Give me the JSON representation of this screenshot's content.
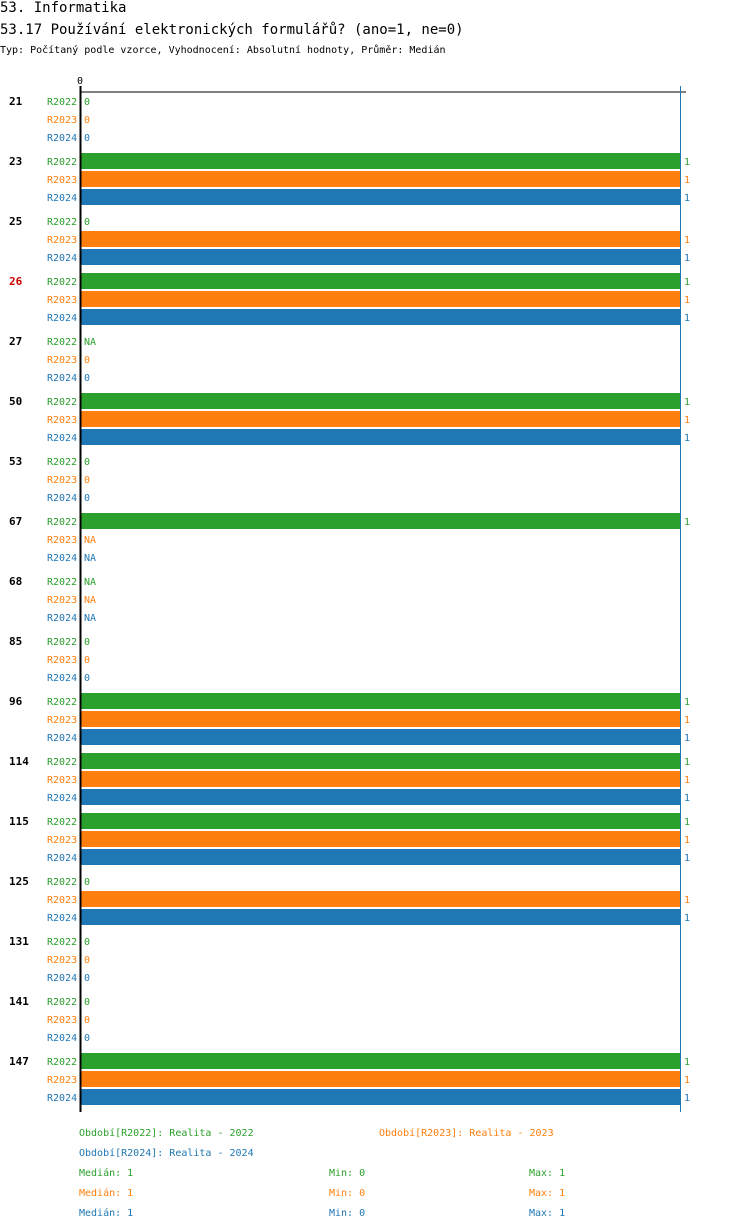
{
  "header": {
    "section": "53. Informatika",
    "question": "53.17 Používání elektronických formulářů? (ano=1, ne=0)",
    "meta": "Typ: Počítaný podle vzorce, Vyhodnocení: Absolutní hodnoty, Průměr: Medián"
  },
  "colors": {
    "R2022": "#2ca02c",
    "R2023": "#ff7f0e",
    "R2024": "#1f77b4",
    "highlight": "#cc0000"
  },
  "chart_data": {
    "type": "bar",
    "orientation": "horizontal",
    "title": "53.17 Používání elektronických formulářů? (ano=1, ne=0)",
    "xlim": [
      0,
      1
    ],
    "x_tick_labels": [
      "0"
    ],
    "series": [
      {
        "name": "R2022",
        "color": "#2ca02c"
      },
      {
        "name": "R2023",
        "color": "#ff7f0e"
      },
      {
        "name": "R2024",
        "color": "#1f77b4"
      }
    ],
    "groups": [
      {
        "id": "21",
        "highlight": false,
        "values": [
          {
            "series": "R2022",
            "value": 0,
            "label": "0"
          },
          {
            "series": "R2023",
            "value": 0,
            "label": "0"
          },
          {
            "series": "R2024",
            "value": 0,
            "label": "0"
          }
        ]
      },
      {
        "id": "23",
        "highlight": false,
        "values": [
          {
            "series": "R2022",
            "value": 1,
            "label": "1"
          },
          {
            "series": "R2023",
            "value": 1,
            "label": "1"
          },
          {
            "series": "R2024",
            "value": 1,
            "label": "1"
          }
        ]
      },
      {
        "id": "25",
        "highlight": false,
        "values": [
          {
            "series": "R2022",
            "value": 0,
            "label": "0"
          },
          {
            "series": "R2023",
            "value": 1,
            "label": "1"
          },
          {
            "series": "R2024",
            "value": 1,
            "label": "1"
          }
        ]
      },
      {
        "id": "26",
        "highlight": true,
        "values": [
          {
            "series": "R2022",
            "value": 1,
            "label": "1"
          },
          {
            "series": "R2023",
            "value": 1,
            "label": "1"
          },
          {
            "series": "R2024",
            "value": 1,
            "label": "1"
          }
        ]
      },
      {
        "id": "27",
        "highlight": false,
        "values": [
          {
            "series": "R2022",
            "value": null,
            "label": "NA"
          },
          {
            "series": "R2023",
            "value": 0,
            "label": "0"
          },
          {
            "series": "R2024",
            "value": 0,
            "label": "0"
          }
        ]
      },
      {
        "id": "50",
        "highlight": false,
        "values": [
          {
            "series": "R2022",
            "value": 1,
            "label": "1"
          },
          {
            "series": "R2023",
            "value": 1,
            "label": "1"
          },
          {
            "series": "R2024",
            "value": 1,
            "label": "1"
          }
        ]
      },
      {
        "id": "53",
        "highlight": false,
        "values": [
          {
            "series": "R2022",
            "value": 0,
            "label": "0"
          },
          {
            "series": "R2023",
            "value": 0,
            "label": "0"
          },
          {
            "series": "R2024",
            "value": 0,
            "label": "0"
          }
        ]
      },
      {
        "id": "67",
        "highlight": false,
        "values": [
          {
            "series": "R2022",
            "value": 1,
            "label": "1"
          },
          {
            "series": "R2023",
            "value": null,
            "label": "NA"
          },
          {
            "series": "R2024",
            "value": null,
            "label": "NA"
          }
        ]
      },
      {
        "id": "68",
        "highlight": false,
        "values": [
          {
            "series": "R2022",
            "value": null,
            "label": "NA"
          },
          {
            "series": "R2023",
            "value": null,
            "label": "NA"
          },
          {
            "series": "R2024",
            "value": null,
            "label": "NA"
          }
        ]
      },
      {
        "id": "85",
        "highlight": false,
        "values": [
          {
            "series": "R2022",
            "value": 0,
            "label": "0"
          },
          {
            "series": "R2023",
            "value": 0,
            "label": "0"
          },
          {
            "series": "R2024",
            "value": 0,
            "label": "0"
          }
        ]
      },
      {
        "id": "96",
        "highlight": false,
        "values": [
          {
            "series": "R2022",
            "value": 1,
            "label": "1"
          },
          {
            "series": "R2023",
            "value": 1,
            "label": "1"
          },
          {
            "series": "R2024",
            "value": 1,
            "label": "1"
          }
        ]
      },
      {
        "id": "114",
        "highlight": false,
        "values": [
          {
            "series": "R2022",
            "value": 1,
            "label": "1"
          },
          {
            "series": "R2023",
            "value": 1,
            "label": "1"
          },
          {
            "series": "R2024",
            "value": 1,
            "label": "1"
          }
        ]
      },
      {
        "id": "115",
        "highlight": false,
        "values": [
          {
            "series": "R2022",
            "value": 1,
            "label": "1"
          },
          {
            "series": "R2023",
            "value": 1,
            "label": "1"
          },
          {
            "series": "R2024",
            "value": 1,
            "label": "1"
          }
        ]
      },
      {
        "id": "125",
        "highlight": false,
        "values": [
          {
            "series": "R2022",
            "value": 0,
            "label": "0"
          },
          {
            "series": "R2023",
            "value": 1,
            "label": "1"
          },
          {
            "series": "R2024",
            "value": 1,
            "label": "1"
          }
        ]
      },
      {
        "id": "131",
        "highlight": false,
        "values": [
          {
            "series": "R2022",
            "value": 0,
            "label": "0"
          },
          {
            "series": "R2023",
            "value": 0,
            "label": "0"
          },
          {
            "series": "R2024",
            "value": 0,
            "label": "0"
          }
        ]
      },
      {
        "id": "141",
        "highlight": false,
        "values": [
          {
            "series": "R2022",
            "value": 0,
            "label": "0"
          },
          {
            "series": "R2023",
            "value": 0,
            "label": "0"
          },
          {
            "series": "R2024",
            "value": 0,
            "label": "0"
          }
        ]
      },
      {
        "id": "147",
        "highlight": false,
        "values": [
          {
            "series": "R2022",
            "value": 1,
            "label": "1"
          },
          {
            "series": "R2023",
            "value": 1,
            "label": "1"
          },
          {
            "series": "R2024",
            "value": 1,
            "label": "1"
          }
        ]
      }
    ]
  },
  "legend": {
    "periods": {
      "R2022": "Období[R2022]: Realita - 2022",
      "R2023": "Období[R2023]: Realita - 2023",
      "R2024": "Období[R2024]: Realita - 2024"
    },
    "stats": [
      {
        "series": "R2022",
        "median": "Medián: 1",
        "min": "Min: 0",
        "max": "Max: 1"
      },
      {
        "series": "R2023",
        "median": "Medián: 1",
        "min": "Min: 0",
        "max": "Max: 1"
      },
      {
        "series": "R2024",
        "median": "Medián: 1",
        "min": "Min: 0",
        "max": "Max: 1"
      }
    ]
  }
}
